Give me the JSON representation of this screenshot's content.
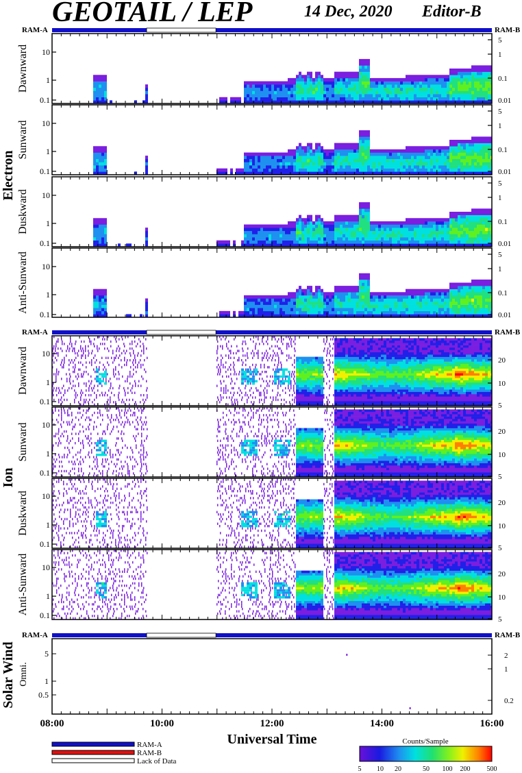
{
  "header": {
    "title": "GEOTAIL / LEP",
    "date": "14 Dec, 2020",
    "editor": "Editor-B"
  },
  "strip_labels": {
    "left": "RAM-A",
    "right": "RAM-B"
  },
  "groups": [
    {
      "label": "Electron",
      "panels": [
        "Dawnward",
        "Sunward",
        "Duskward",
        "Anti-Sunward"
      ]
    },
    {
      "label": "Ion",
      "panels": [
        "Dawnward",
        "Sunward",
        "Duskward",
        "Anti-Sunward"
      ]
    },
    {
      "label": "Solar Wind",
      "panels": [
        "Omni."
      ]
    }
  ],
  "legend": {
    "items": [
      {
        "label": "RAM-A",
        "color": "#1010c8"
      },
      {
        "label": "RAM-B",
        "color": "#e01010"
      },
      {
        "label": "Lack of Data",
        "color": "#ffffff"
      }
    ],
    "colorbar_title": "Counts/Sample",
    "colorbar_ticks": [
      "5",
      "10",
      "20",
      "50",
      "100",
      "200",
      "500"
    ]
  },
  "chart_data": {
    "type": "heatmap",
    "xlabel": "Universal Time",
    "x_ticks": [
      "08:00",
      "10:00",
      "12:00",
      "14:00",
      "16:00"
    ],
    "x_range_hours": [
      8,
      16
    ],
    "data_gap_hours": [
      [
        9.72,
        10.98
      ]
    ],
    "ram_strip": {
      "blue": [
        [
          8.0,
          9.72
        ],
        [
          10.98,
          16.0
        ]
      ],
      "white": [
        [
          9.72,
          10.98
        ]
      ]
    },
    "electron_axes": {
      "left_ticks": [
        "10",
        "1",
        "0.1"
      ],
      "right_ticks": [
        "5",
        "1",
        "0.1",
        "0.01"
      ]
    },
    "ion_axes": {
      "left_ticks": [
        "10",
        "1",
        "0.1"
      ],
      "right_ticks": [
        "20",
        "10",
        "5"
      ]
    },
    "solarwind_axes": {
      "left_ticks": [
        "5",
        "1",
        "0.5"
      ],
      "right_ticks": [
        "2",
        "1",
        "0.2"
      ]
    },
    "colorscale": [
      "#7a1ee0",
      "#2020e8",
      "#1e90f0",
      "#00e0e0",
      "#20e080",
      "#60f020",
      "#f0f000",
      "#ff8000",
      "#ff0000"
    ],
    "colorbar_range": [
      5,
      500
    ],
    "solarwind_points_hours": [
      13.35,
      14.5
    ]
  }
}
